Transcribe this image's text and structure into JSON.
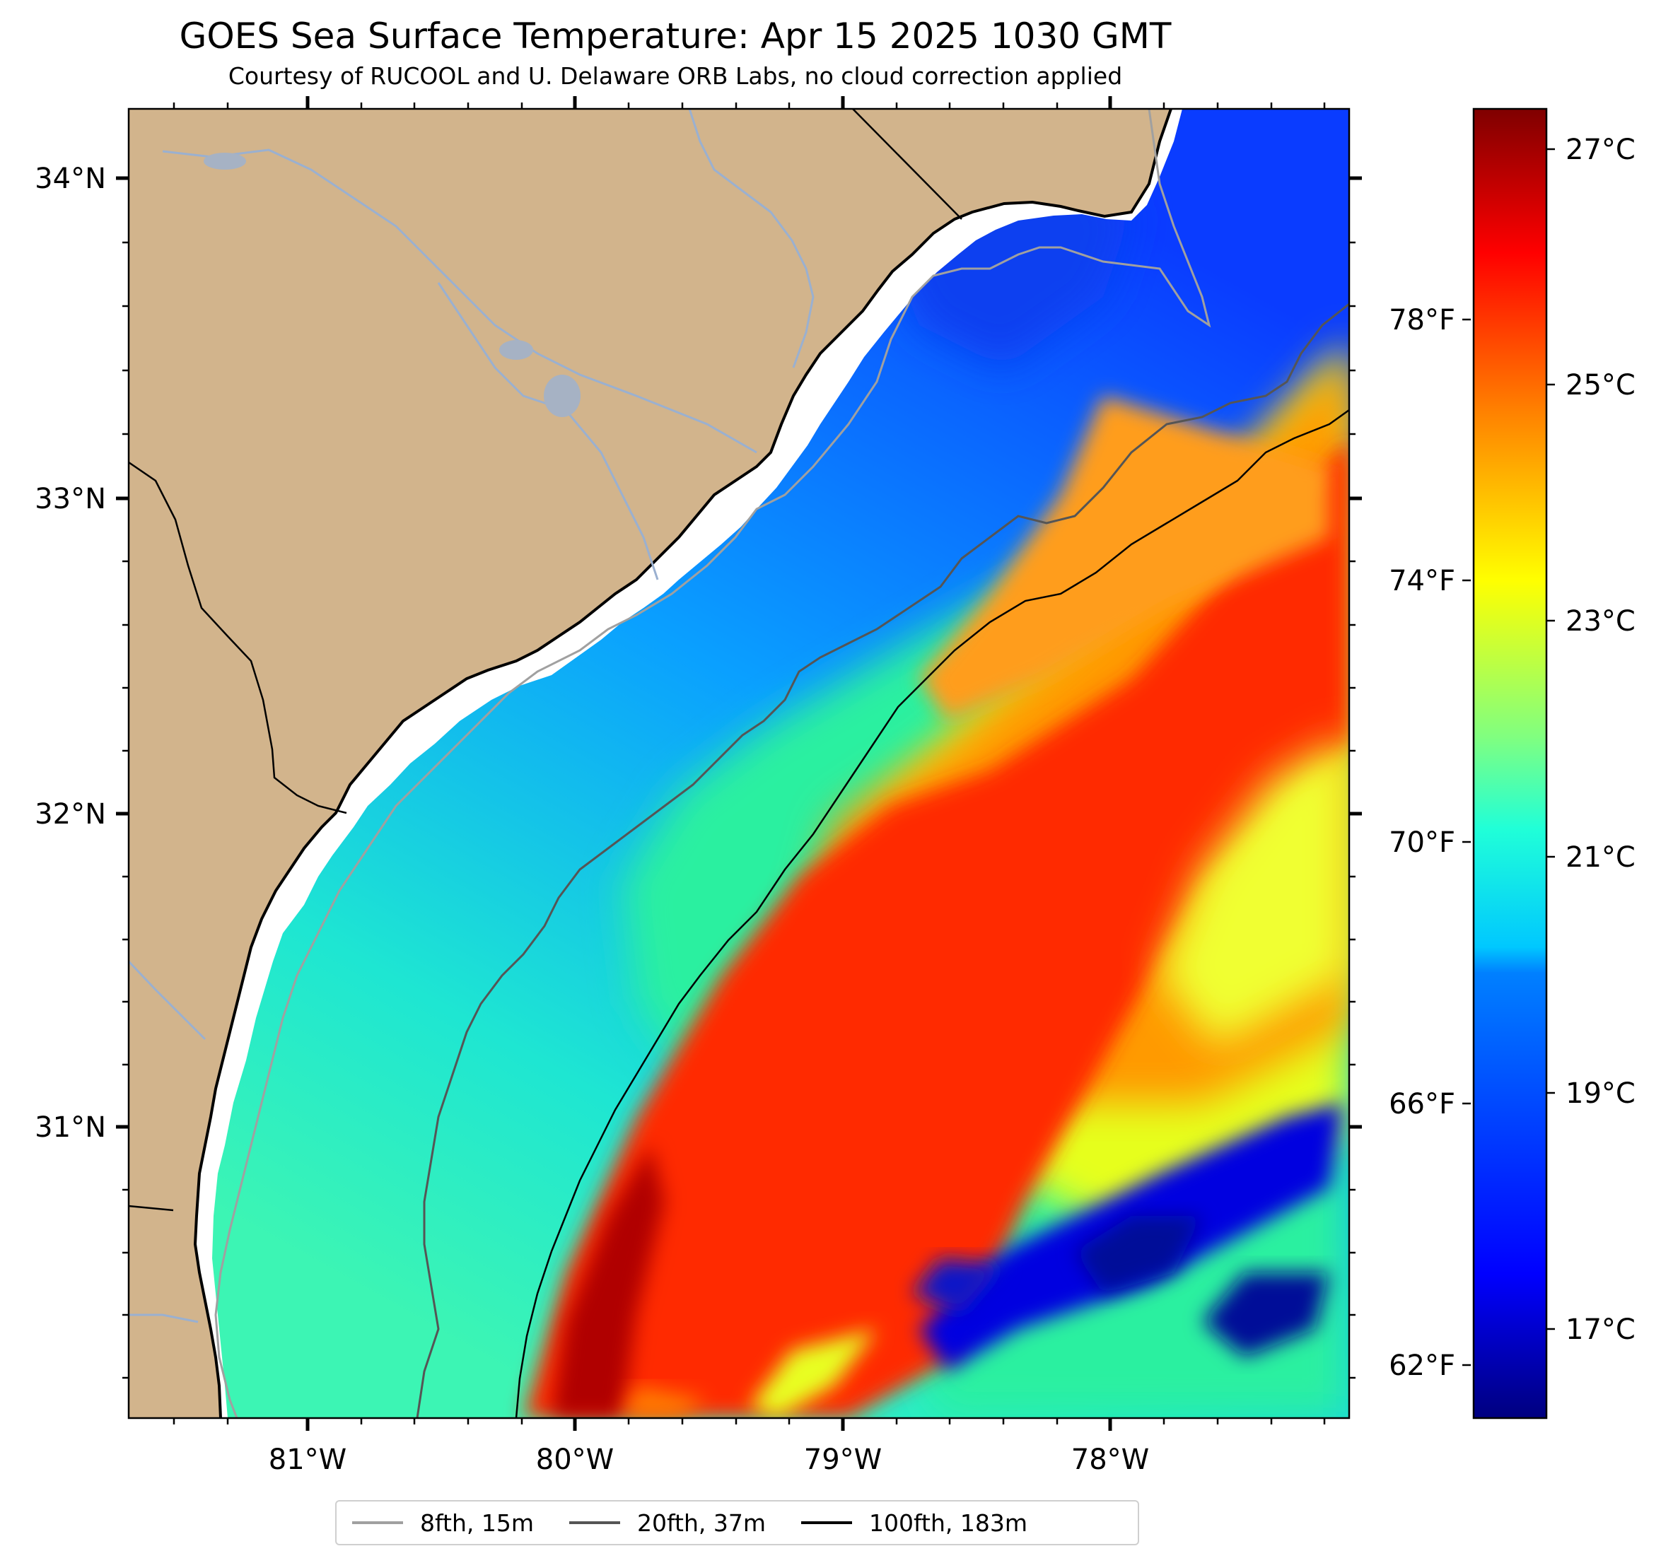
{
  "title": "GOES Sea Surface Temperature: Apr 15 2025 1030 GMT",
  "subtitle": "Courtesy of RUCOOL and U. Delaware ORB Labs, no cloud correction applied",
  "map": {
    "lon_labels": [
      "81°W",
      "80°W",
      "79°W",
      "78°W"
    ],
    "lat_labels": [
      "34°N",
      "33°N",
      "32°N",
      "31°N"
    ],
    "land_color": "#d2b48c",
    "bathymetry_colors": [
      "#a0a0a0",
      "#555555",
      "#000000"
    ]
  },
  "colorbar": {
    "celsius_ticks": [
      "27°C",
      "25°C",
      "23°C",
      "21°C",
      "19°C",
      "17°C"
    ],
    "fahrenheit_ticks": [
      "78°F",
      "74°F",
      "70°F",
      "66°F",
      "62°F"
    ],
    "colors": [
      "#00007f",
      "#0000ff",
      "#0080ff",
      "#00ffff",
      "#80ff80",
      "#ffff00",
      "#ff8000",
      "#ff0000",
      "#7f0000"
    ]
  },
  "legend": [
    {
      "label": "8fth, 15m",
      "color": "#a0a0a0"
    },
    {
      "label": "20fth, 37m",
      "color": "#555555"
    },
    {
      "label": "100fth, 183m",
      "color": "#000000"
    }
  ]
}
